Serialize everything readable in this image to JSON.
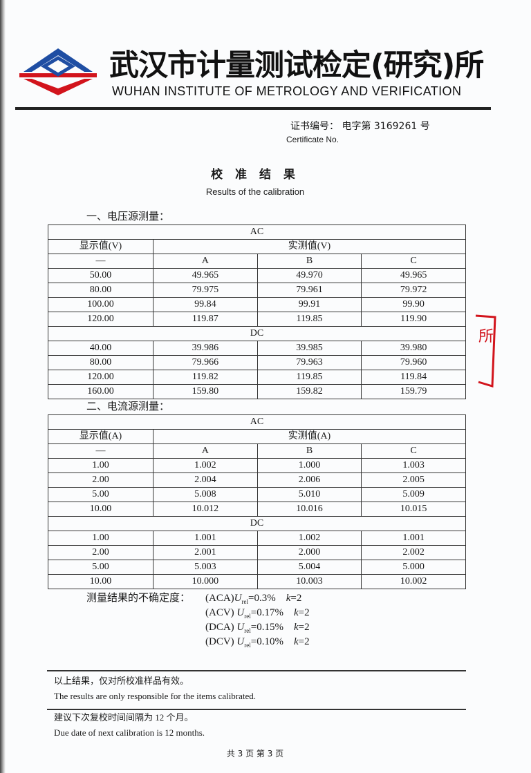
{
  "header": {
    "title_cn": "武汉市计量测试检定(研究)所",
    "title_en": "WUHAN INSTITUTE OF METROLOGY AND VERIFICATION",
    "logo_icon": "institute-logo",
    "brand_colors": [
      "#1f4ea3",
      "#d2141c"
    ]
  },
  "certificate": {
    "label_cn": "证书编号：",
    "number": "电字第 3169261 号",
    "label_en": "Certificate No."
  },
  "results": {
    "title_cn": "校 准 结 果",
    "title_en": "Results of the calibration"
  },
  "voltage": {
    "section": "一、电压源测量：",
    "ac_label": "AC",
    "dc_label": "DC",
    "col_display": "显示值(V)",
    "col_measured": "实测值(V)",
    "col_dash": "—",
    "phases": [
      "A",
      "B",
      "C"
    ],
    "ac_rows": [
      [
        "50.00",
        "49.965",
        "49.970",
        "49.965"
      ],
      [
        "80.00",
        "79.975",
        "79.961",
        "79.972"
      ],
      [
        "100.00",
        "99.84",
        "99.91",
        "99.90"
      ],
      [
        "120.00",
        "119.87",
        "119.85",
        "119.90"
      ]
    ],
    "dc_rows": [
      [
        "40.00",
        "39.986",
        "39.985",
        "39.980"
      ],
      [
        "80.00",
        "79.966",
        "79.963",
        "79.960"
      ],
      [
        "120.00",
        "119.82",
        "119.85",
        "119.84"
      ],
      [
        "160.00",
        "159.80",
        "159.82",
        "159.79"
      ]
    ]
  },
  "current": {
    "section": "二、电流源测量：",
    "ac_label": "AC",
    "dc_label": "DC",
    "col_display": "显示值(A)",
    "col_measured": "实测值(A)",
    "col_dash": "—",
    "phases": [
      "A",
      "B",
      "C"
    ],
    "ac_rows": [
      [
        "1.00",
        "1.002",
        "1.000",
        "1.003"
      ],
      [
        "2.00",
        "2.004",
        "2.006",
        "2.005"
      ],
      [
        "5.00",
        "5.008",
        "5.010",
        "5.009"
      ],
      [
        "10.00",
        "10.012",
        "10.016",
        "10.015"
      ]
    ],
    "dc_rows": [
      [
        "1.00",
        "1.001",
        "1.002",
        "1.001"
      ],
      [
        "2.00",
        "2.001",
        "2.000",
        "2.002"
      ],
      [
        "5.00",
        "5.003",
        "5.004",
        "5.000"
      ],
      [
        "10.00",
        "10.000",
        "10.003",
        "10.002"
      ]
    ]
  },
  "uncertainty": {
    "label": "测量结果的不确定度：",
    "lines": [
      {
        "type": "(ACA)",
        "value": "=0.3%",
        "k": "=2"
      },
      {
        "type": "(ACV) ",
        "value": "=0.17%",
        "k": "=2"
      },
      {
        "type": "(DCA) ",
        "value": "=0.15%",
        "k": "=2"
      },
      {
        "type": "(DCV) ",
        "value": "=0.10%",
        "k": "=2"
      }
    ],
    "u": "U",
    "sub": "rel",
    "k_label": "k"
  },
  "notes": {
    "valid_cn": "以上结果，仅对所校准样品有效。",
    "valid_en": "The results are only responsible for the items calibrated.",
    "interval_cn": "建议下次复校时间间隔为  12  个月。",
    "interval_en": "Due date of next calibration is    12     months."
  },
  "stamp": {
    "text": "所",
    "color": "#d2141c"
  },
  "footer": {
    "page": "共 3 页 第 3 页"
  }
}
